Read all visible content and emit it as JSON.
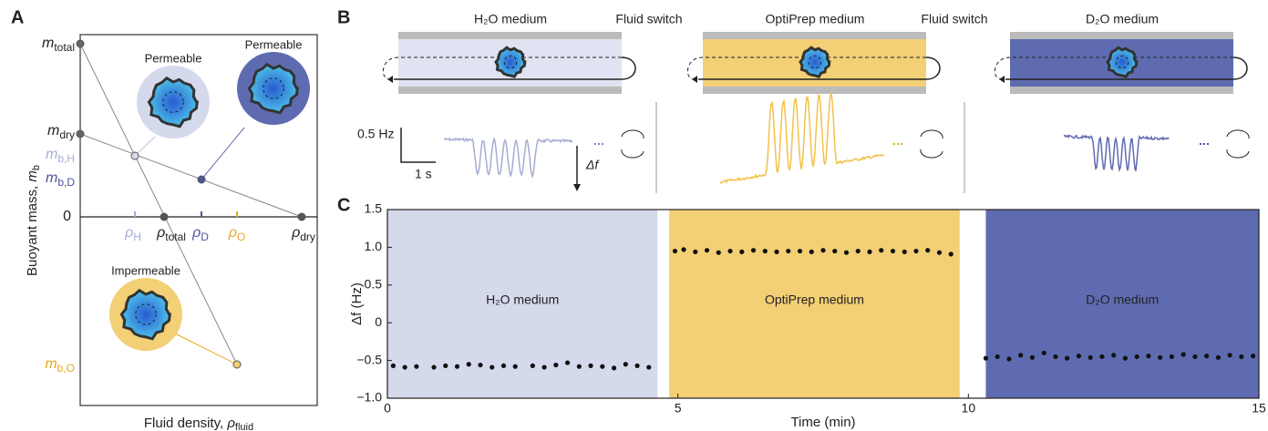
{
  "panel_a": {
    "letter": "A",
    "y_label": {
      "main": "Buoyant mass, ",
      "var": "m",
      "sub": "b"
    },
    "x_label": {
      "main": "Fluid density, ",
      "var": "ρ",
      "sub": "fluid"
    },
    "labels": [
      {
        "main": "m",
        "sub": "total"
      },
      {
        "main": "m",
        "sub": "dry"
      },
      {
        "main": "m",
        "sub": "b,H"
      },
      {
        "main": "m",
        "sub": "b,D"
      },
      {
        "main": "0"
      },
      {
        "main": "ρ",
        "sub": "H"
      },
      {
        "main": "ρ",
        "sub": "total"
      },
      {
        "main": "ρ",
        "sub": "D"
      },
      {
        "main": "ρ",
        "sub": "O"
      },
      {
        "main": "ρ",
        "sub": "dry"
      },
      {
        "main": "m",
        "sub": "b,O"
      }
    ],
    "cells": [
      "Permeable",
      "Permeable",
      "Impermeable"
    ]
  },
  "panel_b": {
    "letter": "B",
    "media": [
      "H₂O medium",
      "OptiPrep medium",
      "D₂O medium"
    ],
    "switch": [
      "Fluid switch",
      "Fluid switch"
    ],
    "scale_y": "0.5 Hz",
    "scale_x": "1 s",
    "delta": "Δf"
  },
  "chart_data": {
    "type": "scatter",
    "letter": "C",
    "y_label": "Δf (Hz)",
    "x_label": "Time (min)",
    "xlim": [
      0,
      15
    ],
    "ylim": [
      -1.0,
      1.5
    ],
    "xticks": [
      0,
      5,
      10,
      15
    ],
    "yticks": [
      {
        "value": -1.0,
        "label": "−1.0"
      },
      {
        "value": -0.5,
        "label": "−0.5"
      },
      0,
      0.5,
      {
        "value": 1.0,
        "label": "1.0"
      },
      1.5
    ],
    "marker_color": "#111111",
    "regions": [
      {
        "label": "H₂O medium",
        "start": 0,
        "end": 4.65,
        "color": "#d5d9ec",
        "label_color": "#333333"
      },
      {
        "label": "OptiPrep medium",
        "start": 4.85,
        "end": 9.85,
        "color": "#f3cf75",
        "label_color": "#333333"
      },
      {
        "label": "D₂O medium",
        "start": 10.3,
        "end": 15,
        "color": "#5f6bb0",
        "label_color": "#ffffff"
      }
    ],
    "series": [
      {
        "x": [
          0.1,
          0.3,
          0.5,
          0.8,
          1.0,
          1.2,
          1.4,
          1.6,
          1.8,
          2.0,
          2.2,
          2.5,
          2.7,
          2.9,
          3.1,
          3.3,
          3.5,
          3.7,
          3.9,
          4.1,
          4.3,
          4.5
        ],
        "values": [
          -0.57,
          -0.59,
          -0.58,
          -0.59,
          -0.57,
          -0.58,
          -0.55,
          -0.56,
          -0.59,
          -0.57,
          -0.58,
          -0.57,
          -0.59,
          -0.56,
          -0.53,
          -0.58,
          -0.57,
          -0.58,
          -0.6,
          -0.55,
          -0.57,
          -0.59
        ]
      },
      {
        "x": [
          4.95,
          5.1,
          5.3,
          5.5,
          5.7,
          5.9,
          6.1,
          6.3,
          6.5,
          6.7,
          6.9,
          7.1,
          7.3,
          7.5,
          7.7,
          7.9,
          8.1,
          8.3,
          8.5,
          8.7,
          8.9,
          9.1,
          9.3,
          9.5,
          9.7
        ],
        "values": [
          0.95,
          0.97,
          0.94,
          0.96,
          0.93,
          0.95,
          0.94,
          0.96,
          0.95,
          0.94,
          0.95,
          0.95,
          0.94,
          0.96,
          0.95,
          0.93,
          0.95,
          0.94,
          0.96,
          0.95,
          0.94,
          0.95,
          0.96,
          0.93,
          0.91
        ]
      },
      {
        "x": [
          10.3,
          10.5,
          10.7,
          10.9,
          11.1,
          11.3,
          11.5,
          11.7,
          11.9,
          12.1,
          12.3,
          12.5,
          12.7,
          12.9,
          13.1,
          13.3,
          13.5,
          13.7,
          13.9,
          14.1,
          14.3,
          14.5,
          14.7,
          14.9
        ],
        "values": [
          -0.47,
          -0.45,
          -0.48,
          -0.43,
          -0.46,
          -0.4,
          -0.45,
          -0.47,
          -0.44,
          -0.46,
          -0.45,
          -0.43,
          -0.47,
          -0.45,
          -0.44,
          -0.46,
          -0.45,
          -0.42,
          -0.45,
          -0.44,
          -0.46,
          -0.43,
          -0.45,
          -0.44
        ]
      }
    ]
  }
}
